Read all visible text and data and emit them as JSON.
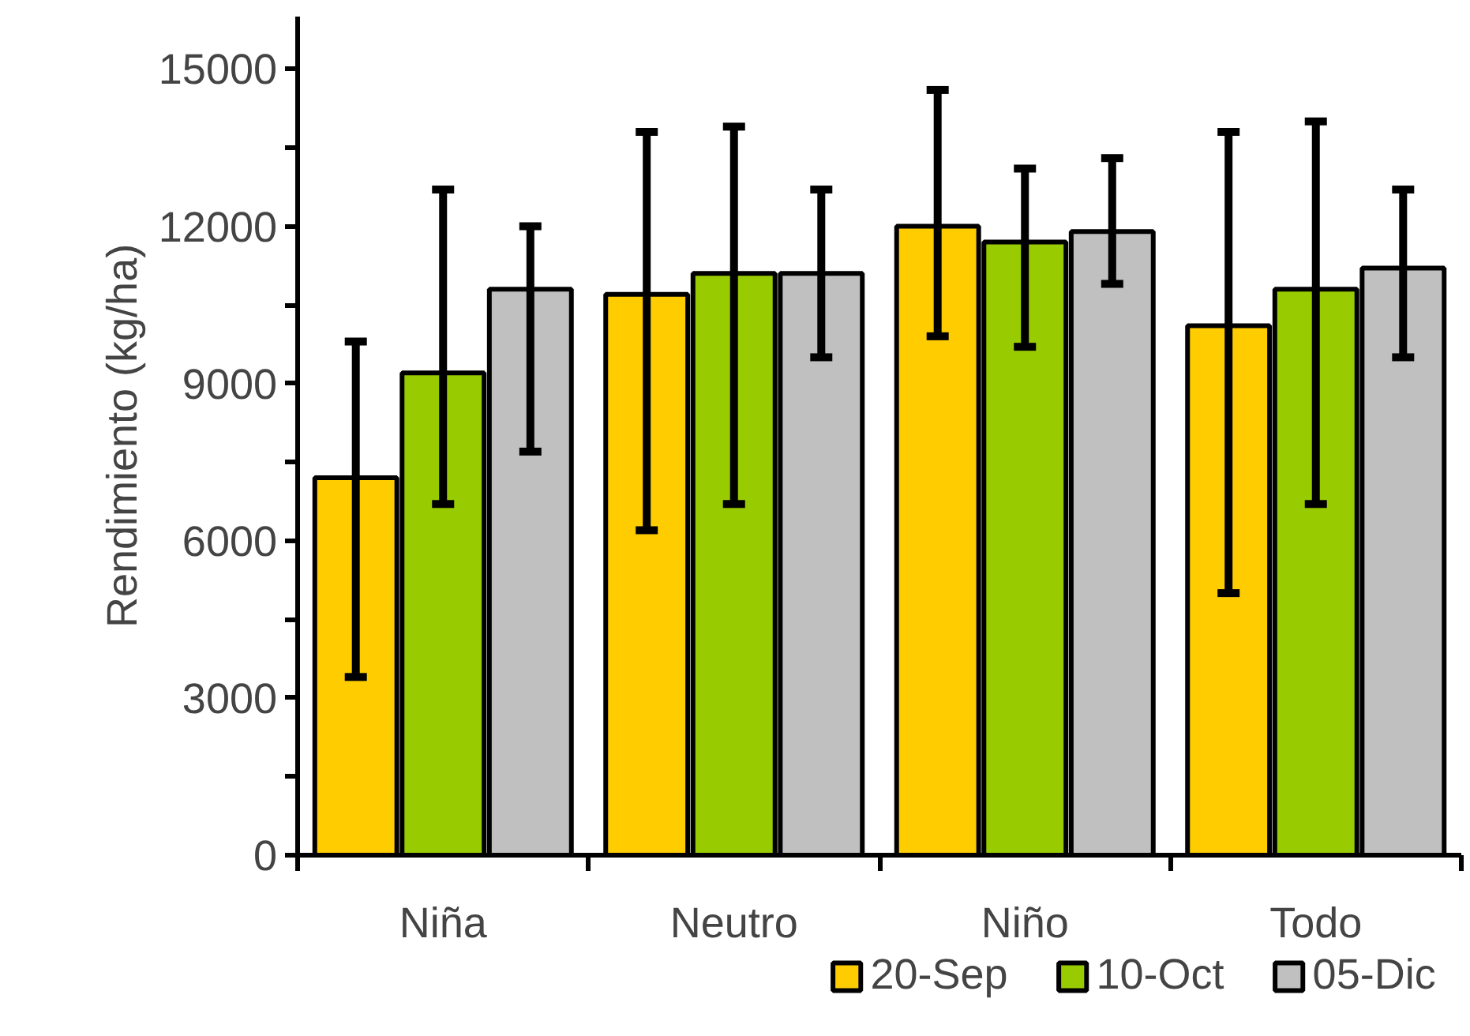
{
  "chart_data": {
    "type": "bar",
    "ylabel": "Rendimiento (kg/ha)",
    "categories": [
      "Niña",
      "Neutro",
      "Niño",
      "Todo"
    ],
    "series": [
      {
        "name": "20-Sep",
        "color": "#ffcc00",
        "values": [
          7200,
          10700,
          12000,
          10100
        ],
        "errors": [
          [
            3400,
            9800
          ],
          [
            6200,
            13800
          ],
          [
            9900,
            14600
          ],
          [
            5000,
            13800
          ]
        ]
      },
      {
        "name": "10-Oct",
        "color": "#99cc00",
        "values": [
          9200,
          11100,
          11700,
          10800
        ],
        "errors": [
          [
            6700,
            12700
          ],
          [
            6700,
            13900
          ],
          [
            9700,
            13100
          ],
          [
            6700,
            14000
          ]
        ]
      },
      {
        "name": "05-Dic",
        "color": "#c0c0c0",
        "values": [
          10800,
          11100,
          11900,
          11200
        ],
        "errors": [
          [
            7700,
            12000
          ],
          [
            9500,
            12700
          ],
          [
            10900,
            13300
          ],
          [
            9500,
            12700
          ]
        ]
      }
    ],
    "ylim": [
      0,
      16000
    ],
    "yticks": [
      0,
      3000,
      6000,
      9000,
      12000,
      15000
    ],
    "grid": false,
    "legend": "bottom"
  }
}
